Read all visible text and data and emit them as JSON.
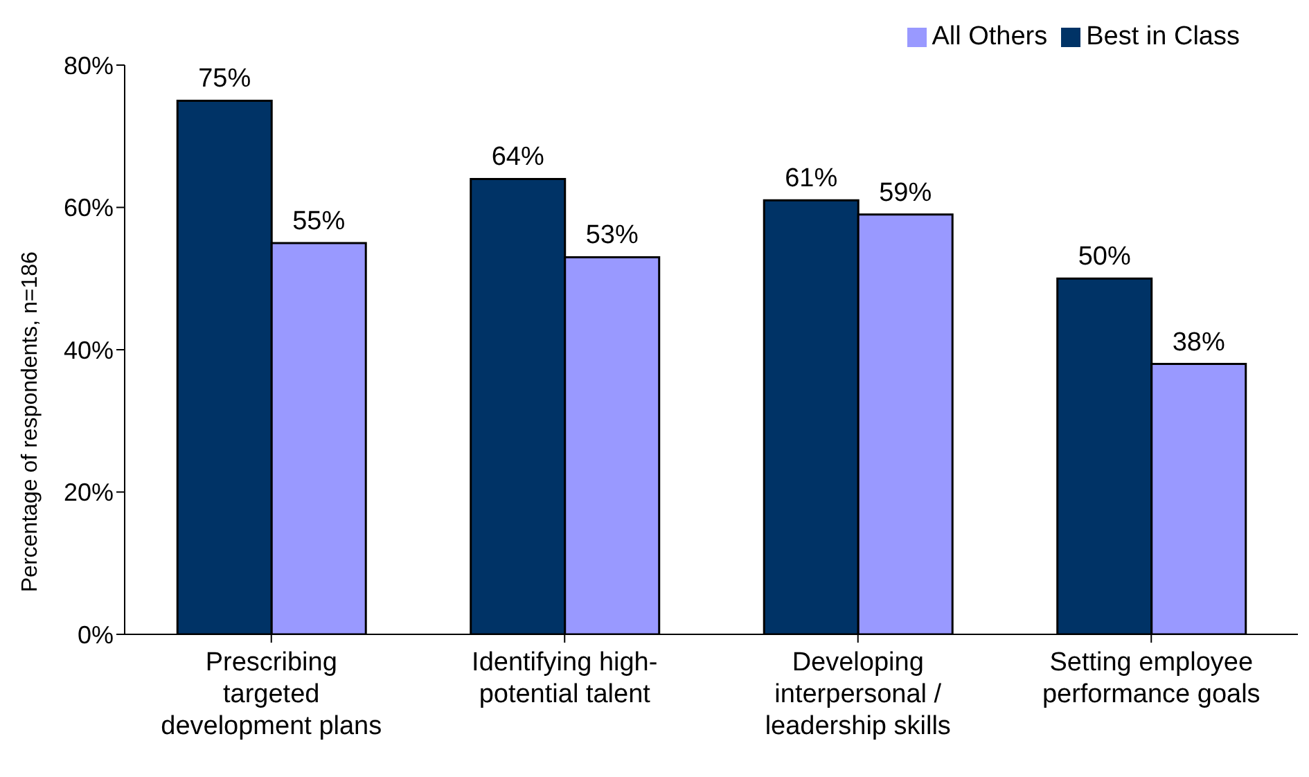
{
  "chart_data": {
    "type": "bar",
    "ylabel": "Percentage of respondents, n=186",
    "categories": [
      "Prescribing targeted development plans",
      "Identifying high-potential talent",
      "Developing interpersonal / leadership skills",
      "Setting employee performance goals"
    ],
    "series": [
      {
        "name": "Best in Class",
        "color": "#003366",
        "values": [
          75,
          64,
          61,
          50
        ],
        "value_labels": [
          "75%",
          "64%",
          "61%",
          "50%"
        ]
      },
      {
        "name": "All Others",
        "color": "#9999ff",
        "values": [
          55,
          53,
          59,
          38
        ],
        "value_labels": [
          "55%",
          "53%",
          "59%",
          "38%"
        ]
      }
    ],
    "ylim": [
      0,
      80
    ],
    "yticks": [
      {
        "value": 0,
        "label": "0%"
      },
      {
        "value": 20,
        "label": "20%"
      },
      {
        "value": 40,
        "label": "40%"
      },
      {
        "value": 60,
        "label": "60%"
      },
      {
        "value": 80,
        "label": "80%"
      }
    ],
    "grid": false,
    "legend": "top right"
  }
}
